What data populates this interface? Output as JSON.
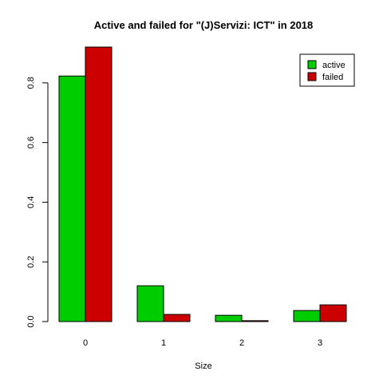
{
  "chart_data": {
    "type": "bar",
    "title": "Active and failed for \"(J)Servizi: ICT\" in 2018",
    "xlabel": "Size",
    "ylabel": "",
    "categories": [
      "0",
      "1",
      "2",
      "3"
    ],
    "series": [
      {
        "name": "active",
        "color": "#00cd00",
        "values": [
          0.823,
          0.12,
          0.021,
          0.037
        ]
      },
      {
        "name": "failed",
        "color": "#cd0000",
        "values": [
          0.92,
          0.024,
          0.003,
          0.056
        ]
      }
    ],
    "ylim": [
      0,
      0.92
    ],
    "yticks": [
      0.0,
      0.2,
      0.4,
      0.6,
      0.8
    ],
    "ytick_labels": [
      "0.0",
      "0.2",
      "0.4",
      "0.6",
      "0.8"
    ],
    "legend_position": "top-right",
    "grid": false
  }
}
